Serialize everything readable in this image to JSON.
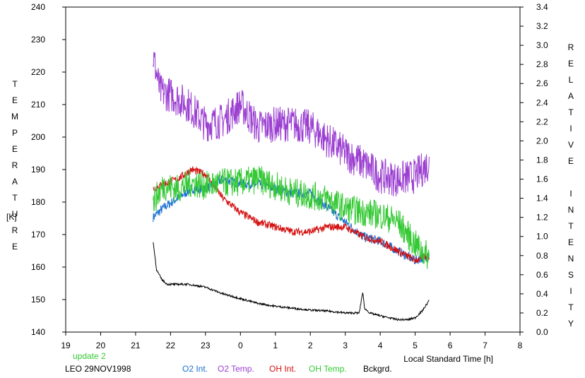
{
  "chart_data": {
    "type": "line",
    "xlabel": "Local Standard Time [h]",
    "ylabel_left": "TEMPERATURE",
    "ylabel_left_unit": "[K]",
    "ylabel_right": "RELATIVE INTENSITY",
    "x_ticks": [
      19,
      20,
      21,
      22,
      23,
      0,
      1,
      2,
      3,
      4,
      5,
      6,
      7,
      8
    ],
    "x_range_hours": [
      19,
      32
    ],
    "ylim_left": [
      140,
      240
    ],
    "ylim_right": [
      0.0,
      3.4
    ],
    "y_ticks_left": [
      "140",
      "150",
      "160",
      "170",
      "180",
      "190",
      "200",
      "210",
      "220",
      "230",
      "240"
    ],
    "y_ticks_right": [
      "0.0",
      "0.2",
      "0.4",
      "0.6",
      "0.8",
      "1.0",
      "1.2",
      "1.4",
      "1.6",
      "1.8",
      "2.0",
      "2.2",
      "2.4",
      "2.6",
      "2.8",
      "3.0",
      "3.2",
      "3.4"
    ],
    "grid": false,
    "legend_placement": "bottom",
    "series": [
      {
        "name": "O2 Int.",
        "axis": "right",
        "color": "#1a6fd4",
        "noise": 0.05,
        "x": [
          21.5,
          21.8,
          22.2,
          22.6,
          23.0,
          23.5,
          24.0,
          24.5,
          25.0,
          25.5,
          26.0,
          26.5,
          27.0,
          27.5,
          28.0,
          28.5,
          29.0,
          29.4
        ],
        "y": [
          1.2,
          1.3,
          1.4,
          1.5,
          1.5,
          1.6,
          1.55,
          1.55,
          1.5,
          1.45,
          1.45,
          1.3,
          1.15,
          1.0,
          0.95,
          0.85,
          0.75,
          0.8
        ]
      },
      {
        "name": "O2 Temp.",
        "axis": "left",
        "color": "#9b3fd1",
        "noise": 5.5,
        "x": [
          21.5,
          21.7,
          22.0,
          22.5,
          23.0,
          23.5,
          24.0,
          24.5,
          25.0,
          25.5,
          26.0,
          26.5,
          27.0,
          27.5,
          28.0,
          28.5,
          29.0,
          29.4
        ],
        "y": [
          225,
          214,
          213,
          210,
          204,
          205,
          210,
          203,
          204,
          204,
          203,
          199,
          195,
          192,
          188,
          187,
          188,
          192
        ]
      },
      {
        "name": "OH Int.",
        "axis": "right",
        "color": "#d41010",
        "noise": 0.04,
        "x": [
          21.5,
          21.8,
          22.2,
          22.6,
          23.0,
          23.5,
          24.0,
          24.5,
          25.0,
          25.5,
          26.0,
          26.5,
          27.0,
          27.5,
          28.0,
          28.5,
          29.0,
          29.4
        ],
        "y": [
          1.5,
          1.55,
          1.6,
          1.7,
          1.65,
          1.4,
          1.25,
          1.15,
          1.1,
          1.05,
          1.05,
          1.1,
          1.1,
          1.0,
          0.95,
          0.85,
          0.75,
          0.8
        ]
      },
      {
        "name": "OH Temp.",
        "axis": "left",
        "color": "#35c935",
        "noise": 4.5,
        "x": [
          21.5,
          21.8,
          22.2,
          22.6,
          23.0,
          23.5,
          24.0,
          24.5,
          25.0,
          25.5,
          26.0,
          26.5,
          27.0,
          27.5,
          28.0,
          28.5,
          29.0,
          29.4
        ],
        "y": [
          180,
          185,
          184,
          186,
          185,
          186,
          186,
          187,
          185,
          183,
          182,
          181,
          178,
          177,
          176,
          174,
          167,
          163
        ]
      },
      {
        "name": "Bckgrd.",
        "axis": "right",
        "color": "#000000",
        "noise": 0.01,
        "x": [
          21.5,
          21.6,
          21.75,
          21.9,
          22.2,
          22.5,
          23.0,
          23.5,
          24.0,
          24.5,
          25.0,
          25.5,
          26.0,
          26.5,
          27.0,
          27.4,
          27.5,
          27.55,
          27.7,
          28.0,
          28.5,
          28.8,
          29.0,
          29.2,
          29.4
        ],
        "y": [
          0.95,
          0.65,
          0.55,
          0.5,
          0.5,
          0.5,
          0.47,
          0.4,
          0.35,
          0.3,
          0.27,
          0.25,
          0.23,
          0.22,
          0.2,
          0.2,
          0.42,
          0.25,
          0.2,
          0.17,
          0.13,
          0.13,
          0.15,
          0.22,
          0.33
        ]
      }
    ]
  },
  "footer": {
    "update_label": "update 2",
    "update_color": "#35c935",
    "station_label": "LEO 29NOV1998"
  }
}
